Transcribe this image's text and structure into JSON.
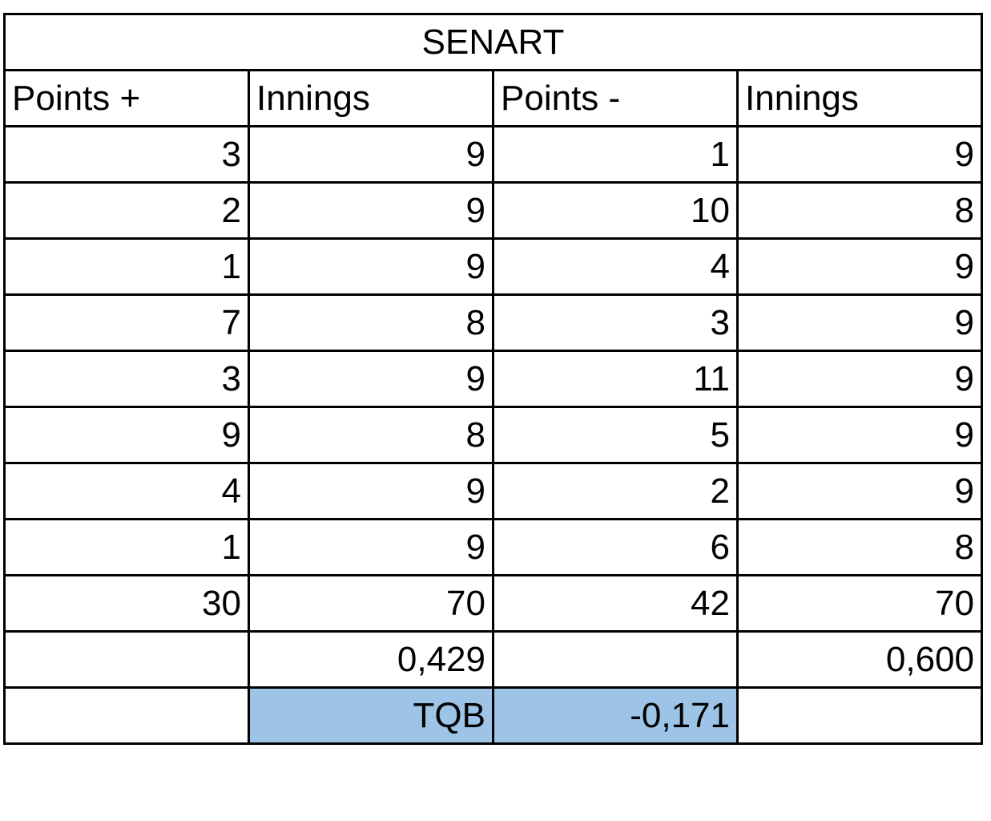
{
  "table": {
    "title": "SENART",
    "headers": [
      "Points +",
      "Innings",
      "Points -",
      "Innings"
    ],
    "rows": [
      [
        "3",
        "9",
        "1",
        "9"
      ],
      [
        "2",
        "9",
        "10",
        "8"
      ],
      [
        "1",
        "9",
        "4",
        "9"
      ],
      [
        "7",
        "8",
        "3",
        "9"
      ],
      [
        "3",
        "9",
        "11",
        "9"
      ],
      [
        "9",
        "8",
        "5",
        "9"
      ],
      [
        "4",
        "9",
        "2",
        "9"
      ],
      [
        "1",
        "9",
        "6",
        "8"
      ]
    ],
    "totals": [
      "30",
      "70",
      "42",
      "70"
    ],
    "ratios": [
      "",
      "0,429",
      "",
      "0,600"
    ],
    "result": {
      "label": "TQB",
      "value": "-0,171"
    }
  },
  "colors": {
    "highlight": "#9dc3e6",
    "border": "#000000"
  }
}
